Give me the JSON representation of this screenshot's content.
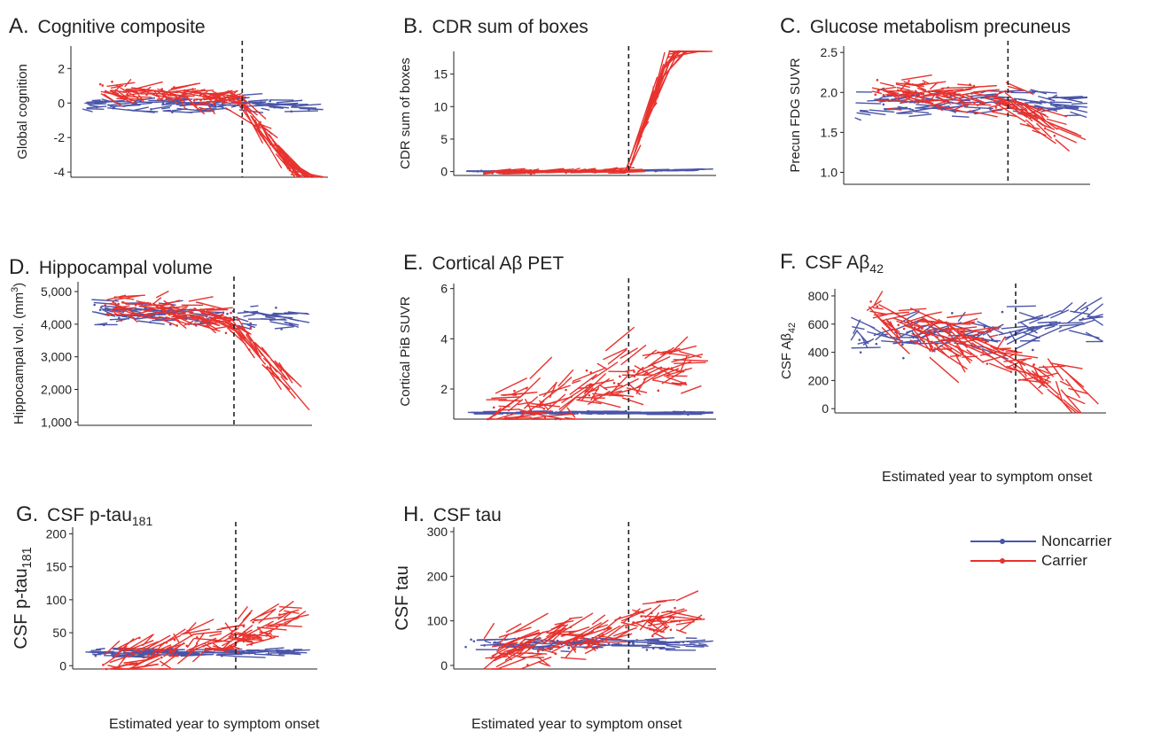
{
  "colors": {
    "noncarrier": "#4a55a8",
    "carrier": "#e8322e",
    "axis": "#222222",
    "onset_line": "#222222"
  },
  "x_caption": "Estimated year to symptom onset",
  "legend": {
    "noncarrier": "Noncarrier",
    "carrier": "Carrier"
  },
  "chart_data": [
    {
      "id": "A",
      "type": "line",
      "letter": "A.",
      "title": "Cognitive composite",
      "title_sub": "",
      "ylabel": "Global cognition",
      "ylabel_sub": "",
      "ylabel_sup": "",
      "ylabel_tail": "",
      "ylim": [
        -4.3,
        3.3
      ],
      "yticks": [
        -4,
        -2,
        0,
        2
      ],
      "ytick_labels": [
        "-4",
        "-2",
        "0",
        "2"
      ],
      "xlim": [
        -30,
        15
      ],
      "xlabel": "",
      "noncarrier": {
        "base": -0.05,
        "slope_pre": 0.004,
        "slope_post": -0.01,
        "spread": 0.35,
        "seg_slope": 0.4
      },
      "carrier": {
        "base": 0.1,
        "slope_pre": -0.03,
        "slope_post": -0.45,
        "spread": 0.4,
        "seg_slope": 1.3
      }
    },
    {
      "id": "B",
      "type": "line",
      "letter": "B.",
      "title": "CDR sum of boxes",
      "title_sub": "",
      "ylabel": "CDR sum of boxes",
      "ylabel_sub": "",
      "ylabel_sup": "",
      "ylabel_tail": "",
      "ylim": [
        -0.6,
        18.5
      ],
      "yticks": [
        0,
        5,
        10,
        15
      ],
      "ytick_labels": [
        "0",
        "5",
        "10",
        "15"
      ],
      "xlim": [
        -30,
        15
      ],
      "xlabel": "",
      "noncarrier": {
        "base": 0.05,
        "slope_pre": 0,
        "slope_post": 0.02,
        "spread": 0.1,
        "seg_slope": 0.05
      },
      "carrier": {
        "base": 0.05,
        "slope_pre": 0.01,
        "slope_post": 2.6,
        "spread": 0.2,
        "seg_slope": 5.0
      }
    },
    {
      "id": "C",
      "type": "line",
      "letter": "C.",
      "title": "Glucose metabolism precuneus",
      "title_sub": "",
      "ylabel": "Precun FDG SUVR",
      "ylabel_sub": "",
      "ylabel_sup": "",
      "ylabel_tail": "",
      "ylim": [
        0.85,
        2.58
      ],
      "yticks": [
        1.0,
        1.5,
        2.0,
        2.5
      ],
      "ytick_labels": [
        "1.0",
        "1.5",
        "2.0",
        "2.5"
      ],
      "xlim": [
        -30,
        15
      ],
      "xlabel": "",
      "noncarrier": {
        "base": 1.9,
        "slope_pre": 0.002,
        "slope_post": -0.005,
        "spread": 0.14,
        "seg_slope": 0.12
      },
      "carrier": {
        "base": 1.9,
        "slope_pre": -0.006,
        "slope_post": -0.04,
        "spread": 0.15,
        "seg_slope": 0.2
      }
    },
    {
      "id": "D",
      "type": "line",
      "letter": "D.",
      "title": "Hippocampal volume",
      "title_sub": "",
      "ylabel": "Hippocampal vol. (mm",
      "ylabel_sub": "",
      "ylabel_sup": "3",
      "ylabel_tail": ")",
      "ylim": [
        900,
        5300
      ],
      "yticks": [
        1000,
        2000,
        3000,
        4000,
        5000
      ],
      "ytick_labels": [
        "1,000",
        "2,000",
        "3,000",
        "4,000",
        "5,000"
      ],
      "xlim": [
        -30,
        15
      ],
      "xlabel": "",
      "noncarrier": {
        "base": 4250,
        "slope_pre": -5,
        "slope_post": -15,
        "spread": 300,
        "seg_slope": 250
      },
      "carrier": {
        "base": 4100,
        "slope_pre": -20,
        "slope_post": -180,
        "spread": 300,
        "seg_slope": 500
      }
    },
    {
      "id": "E",
      "type": "line",
      "letter": "E.",
      "title": "Cortical Aβ PET",
      "title_sub": "",
      "ylabel": "Cortical PiB SUVR",
      "ylabel_sub": "",
      "ylabel_sup": "",
      "ylabel_tail": "",
      "ylim": [
        0.8,
        6.2
      ],
      "yticks": [
        2,
        4,
        6
      ],
      "ytick_labels": [
        "2",
        "4",
        "6"
      ],
      "xlim": [
        -30,
        15
      ],
      "xlabel": "",
      "noncarrier": {
        "base": 1.05,
        "slope_pre": 0,
        "slope_post": 0,
        "spread": 0.05,
        "seg_slope": 0.03
      },
      "carrier": {
        "base": 2.4,
        "slope_pre": 0.075,
        "slope_post": 0.05,
        "spread": 0.9,
        "seg_slope": 1.2
      }
    },
    {
      "id": "F",
      "type": "line",
      "letter": "F.",
      "title": "CSF Aβ",
      "title_sub": "42",
      "ylabel": "CSF Aβ",
      "ylabel_sub": "42",
      "ylabel_sup": "",
      "ylabel_tail": "",
      "ylim": [
        -30,
        850
      ],
      "yticks": [
        0,
        200,
        400,
        600,
        800
      ],
      "ytick_labels": [
        "0",
        "200",
        "400",
        "600",
        "800"
      ],
      "xlim": [
        -30,
        15
      ],
      "xlabel": "Estimated year to symptom onset",
      "noncarrier": {
        "base": 560,
        "slope_pre": 2,
        "slope_post": 5,
        "spread": 120,
        "seg_slope": 200
      },
      "carrier": {
        "base": 330,
        "slope_pre": -15,
        "slope_post": -20,
        "spread": 110,
        "seg_slope": 250
      }
    },
    {
      "id": "G",
      "type": "line",
      "letter": "G.",
      "title": "CSF p-tau",
      "title_sub": "181",
      "ylabel": "CSF p-tau",
      "ylabel_sub": "181",
      "ylabel_sup": "",
      "ylabel_tail": "",
      "ylim": [
        -5,
        210
      ],
      "yticks": [
        0,
        50,
        100,
        150,
        200
      ],
      "ytick_labels": [
        "0",
        "50",
        "100",
        "150",
        "200"
      ],
      "xlim": [
        -30,
        15
      ],
      "xlabel": "Estimated year to symptom onset",
      "noncarrier": {
        "base": 20,
        "slope_pre": 0,
        "slope_post": 0,
        "spread": 5,
        "seg_slope": 5
      },
      "carrier": {
        "base": 50,
        "slope_pre": 2.2,
        "slope_post": 2,
        "spread": 25,
        "seg_slope": 35
      }
    },
    {
      "id": "H",
      "type": "line",
      "letter": "H.",
      "title": "CSF tau",
      "title_sub": "",
      "ylabel": "CSF tau",
      "ylabel_sub": "",
      "ylabel_sup": "",
      "ylabel_tail": "",
      "ylim": [
        -8,
        310
      ],
      "yticks": [
        0,
        100,
        200,
        300
      ],
      "ytick_labels": [
        "0",
        "100",
        "200",
        "300"
      ],
      "xlim": [
        -30,
        15
      ],
      "xlabel": "Estimated year to symptom onset",
      "noncarrier": {
        "base": 48,
        "slope_pre": 0,
        "slope_post": 0,
        "spread": 12,
        "seg_slope": 10
      },
      "carrier": {
        "base": 90,
        "slope_pre": 3,
        "slope_post": 2,
        "spread": 35,
        "seg_slope": 60
      }
    }
  ]
}
